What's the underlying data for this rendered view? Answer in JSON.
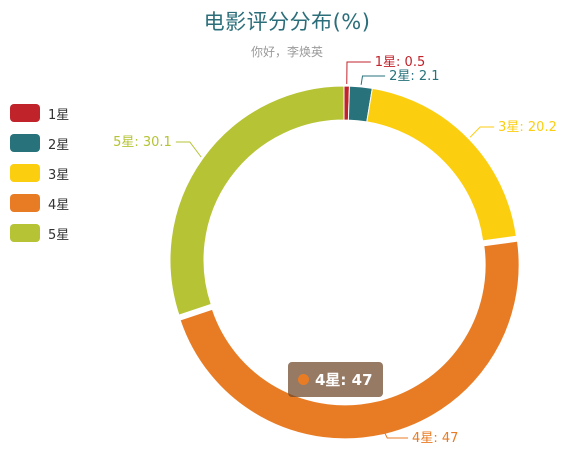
{
  "chart_data": {
    "type": "pie",
    "variant": "donut",
    "title": "电影评分分布(%)",
    "subtitle": "你好，李焕英",
    "categories": [
      "1星",
      "2星",
      "3星",
      "4星",
      "5星"
    ],
    "values": [
      0.5,
      2.1,
      20.2,
      47,
      30.1
    ],
    "colors": [
      "#c1232b",
      "#27727b",
      "#fcce10",
      "#e87c25",
      "#b5c334"
    ],
    "legend_position": "left",
    "slice_labels": [
      "1星: 0.5",
      "2星: 2.1",
      "3星: 20.2",
      "4星: 47",
      "5星: 30.1"
    ]
  },
  "tooltip": {
    "text": "4星: 47",
    "color": "#e87c25"
  }
}
